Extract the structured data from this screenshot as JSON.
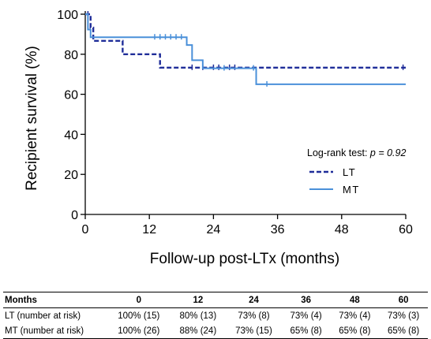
{
  "chart_data": {
    "type": "line",
    "subtype": "kaplan-meier",
    "title": "",
    "xlabel": "Follow-up post-LTx (months)",
    "ylabel": "Recipient survival (%)",
    "xlim": [
      0,
      60
    ],
    "ylim": [
      0,
      100
    ],
    "xticks": [
      0,
      12,
      24,
      36,
      48,
      60
    ],
    "yticks": [
      0,
      20,
      40,
      60,
      80,
      100
    ],
    "grid": false,
    "legend_position": "right",
    "annotation": {
      "prefix": "Log-rank test: ",
      "value": "p = 0.92"
    },
    "series": [
      {
        "name": "LT",
        "color": "#1f2d99",
        "style": "dashed",
        "steps": [
          [
            0,
            100
          ],
          [
            1,
            93.3
          ],
          [
            1.5,
            86.7
          ],
          [
            7,
            80
          ],
          [
            14,
            73.3
          ],
          [
            60,
            73.3
          ]
        ],
        "censored": [
          [
            0.5,
            100
          ],
          [
            20,
            73.3
          ],
          [
            22,
            73.3
          ],
          [
            24,
            73.3
          ],
          [
            25,
            73.3
          ],
          [
            27,
            73.3
          ],
          [
            28,
            73.3
          ],
          [
            59.5,
            73.3
          ]
        ]
      },
      {
        "name": "MT",
        "color": "#4a90d9",
        "style": "solid",
        "steps": [
          [
            0,
            100
          ],
          [
            0.5,
            92.3
          ],
          [
            1,
            88.5
          ],
          [
            19,
            84.6
          ],
          [
            20,
            77
          ],
          [
            22,
            73
          ],
          [
            32,
            65
          ],
          [
            60,
            65
          ]
        ],
        "censored": [
          [
            13,
            88.5
          ],
          [
            14,
            88.5
          ],
          [
            15,
            88.5
          ],
          [
            16,
            88.5
          ],
          [
            17,
            88.5
          ],
          [
            18,
            88.5
          ],
          [
            26,
            73
          ],
          [
            31.5,
            73
          ],
          [
            34,
            65
          ]
        ]
      }
    ]
  },
  "risk_table": {
    "header": [
      "Months",
      "0",
      "12",
      "24",
      "36",
      "48",
      "60"
    ],
    "rows": [
      [
        "LT (number at risk)",
        "100% (15)",
        "80% (13)",
        "73% (8)",
        "73% (4)",
        "73% (4)",
        "73% (3)"
      ],
      [
        "MT (number at risk)",
        "100% (26)",
        "88% (24)",
        "73% (15)",
        "65% (8)",
        "65% (8)",
        "65% (8)"
      ]
    ]
  }
}
